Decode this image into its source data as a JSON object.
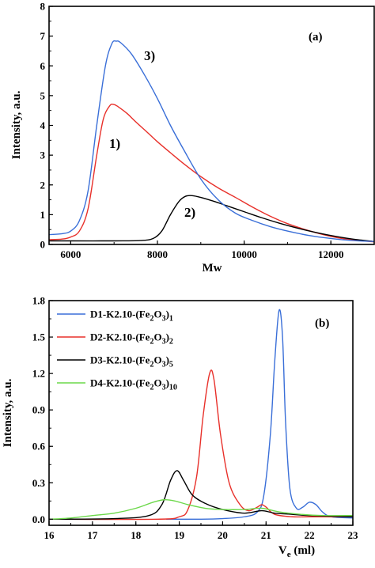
{
  "chart_data": [
    {
      "type": "line",
      "panel_label": "(a)",
      "xlabel": "Mw",
      "ylabel": "Intensity, a.u.",
      "xlim": [
        5500,
        13000
      ],
      "ylim": [
        0,
        8
      ],
      "xticks": [
        6000,
        8000,
        10000,
        12000
      ],
      "yticks": [
        0,
        1,
        2,
        3,
        4,
        5,
        6,
        7,
        8
      ],
      "grid": false,
      "series": [
        {
          "name": "1)",
          "color": "#e8302a",
          "points": [
            [
              5500,
              0.16
            ],
            [
              5800,
              0.18
            ],
            [
              6000,
              0.25
            ],
            [
              6200,
              0.45
            ],
            [
              6400,
              1.2
            ],
            [
              6600,
              3.0
            ],
            [
              6750,
              4.2
            ],
            [
              6900,
              4.66
            ],
            [
              7000,
              4.7
            ],
            [
              7100,
              4.62
            ],
            [
              7300,
              4.4
            ],
            [
              7500,
              4.12
            ],
            [
              7800,
              3.72
            ],
            [
              8000,
              3.45
            ],
            [
              8300,
              3.08
            ],
            [
              8600,
              2.72
            ],
            [
              9000,
              2.28
            ],
            [
              9400,
              1.9
            ],
            [
              9800,
              1.58
            ],
            [
              10200,
              1.25
            ],
            [
              10600,
              0.95
            ],
            [
              11000,
              0.7
            ],
            [
              11500,
              0.46
            ],
            [
              12000,
              0.27
            ],
            [
              12500,
              0.15
            ],
            [
              13000,
              0.09
            ]
          ]
        },
        {
          "name": "2)",
          "color": "#000000",
          "points": [
            [
              5500,
              0.12
            ],
            [
              6000,
              0.12
            ],
            [
              7000,
              0.12
            ],
            [
              7600,
              0.13
            ],
            [
              7900,
              0.2
            ],
            [
              8100,
              0.45
            ],
            [
              8300,
              1.0
            ],
            [
              8500,
              1.45
            ],
            [
              8650,
              1.62
            ],
            [
              8800,
              1.64
            ],
            [
              9000,
              1.58
            ],
            [
              9300,
              1.45
            ],
            [
              9600,
              1.3
            ],
            [
              10000,
              1.1
            ],
            [
              10400,
              0.9
            ],
            [
              10800,
              0.72
            ],
            [
              11200,
              0.56
            ],
            [
              11600,
              0.42
            ],
            [
              12000,
              0.3
            ],
            [
              12500,
              0.18
            ],
            [
              13000,
              0.1
            ]
          ]
        },
        {
          "name": "3)",
          "color": "#3a6fd8",
          "points": [
            [
              5500,
              0.33
            ],
            [
              5800,
              0.36
            ],
            [
              6000,
              0.45
            ],
            [
              6200,
              0.8
            ],
            [
              6400,
              1.8
            ],
            [
              6600,
              4.0
            ],
            [
              6800,
              6.0
            ],
            [
              6950,
              6.75
            ],
            [
              7050,
              6.83
            ],
            [
              7150,
              6.78
            ],
            [
              7400,
              6.4
            ],
            [
              7700,
              5.7
            ],
            [
              8000,
              4.9
            ],
            [
              8300,
              4.0
            ],
            [
              8600,
              3.2
            ],
            [
              9000,
              2.2
            ],
            [
              9400,
              1.5
            ],
            [
              9800,
              1.05
            ],
            [
              10200,
              0.8
            ],
            [
              10600,
              0.6
            ],
            [
              11000,
              0.45
            ],
            [
              11500,
              0.3
            ],
            [
              12000,
              0.2
            ],
            [
              12500,
              0.13
            ],
            [
              13000,
              0.1
            ]
          ]
        }
      ],
      "annotations": [
        "1)",
        "2)",
        "3)"
      ]
    },
    {
      "type": "line",
      "panel_label": "(b)",
      "xlabel": "V",
      "xlabel_sub": "e",
      "xlabel_unit": " (ml)",
      "ylabel": "Intensity, a.u.",
      "xlim": [
        16,
        23
      ],
      "ylim": [
        -0.05,
        1.8
      ],
      "xticks": [
        16,
        17,
        18,
        19,
        20,
        21,
        22,
        23
      ],
      "xtick_labels": [
        "16",
        "17",
        "18",
        "19",
        "20",
        "21",
        "22",
        "23"
      ],
      "yticks": [
        0.0,
        0.3,
        0.6,
        0.9,
        1.2,
        1.5,
        1.8
      ],
      "ytick_labels": [
        "0.0",
        "0.3",
        "0.6",
        "0.9",
        "1.2",
        "1.5",
        "1.8"
      ],
      "grid": false,
      "legend_position": "top-left",
      "series": [
        {
          "name_parts": [
            "D1-K2.10-(Fe",
            "2",
            "O",
            "3",
            ")",
            "1"
          ],
          "color": "#3a6fd8",
          "points": [
            [
              18.7,
              0.0
            ],
            [
              19.5,
              0.0
            ],
            [
              20.0,
              0.005
            ],
            [
              20.5,
              0.02
            ],
            [
              20.8,
              0.06
            ],
            [
              20.95,
              0.2
            ],
            [
              21.1,
              0.7
            ],
            [
              21.2,
              1.3
            ],
            [
              21.3,
              1.72
            ],
            [
              21.38,
              1.5
            ],
            [
              21.45,
              0.8
            ],
            [
              21.55,
              0.25
            ],
            [
              21.7,
              0.09
            ],
            [
              21.85,
              0.1
            ],
            [
              22.0,
              0.14
            ],
            [
              22.15,
              0.12
            ],
            [
              22.3,
              0.06
            ],
            [
              22.5,
              0.02
            ],
            [
              23.0,
              0.01
            ]
          ]
        },
        {
          "name_parts": [
            "D2-K2.10-(Fe",
            "2",
            "O",
            "3",
            ")",
            "2"
          ],
          "color": "#e8302a",
          "points": [
            [
              16.0,
              0.0
            ],
            [
              18.5,
              0.0
            ],
            [
              19.0,
              0.02
            ],
            [
              19.2,
              0.08
            ],
            [
              19.4,
              0.35
            ],
            [
              19.55,
              0.85
            ],
            [
              19.7,
              1.2
            ],
            [
              19.8,
              1.15
            ],
            [
              19.95,
              0.7
            ],
            [
              20.15,
              0.3
            ],
            [
              20.4,
              0.12
            ],
            [
              20.6,
              0.07
            ],
            [
              20.8,
              0.1
            ],
            [
              20.9,
              0.12
            ],
            [
              21.0,
              0.1
            ],
            [
              21.2,
              0.04
            ],
            [
              21.6,
              0.02
            ],
            [
              22.0,
              0.02
            ],
            [
              23.0,
              0.02
            ]
          ]
        },
        {
          "name_parts": [
            "D3-K2.10-(Fe",
            "2",
            "O",
            "3",
            ")",
            "5"
          ],
          "color": "#000000",
          "points": [
            [
              16.0,
              0.0
            ],
            [
              17.5,
              0.005
            ],
            [
              18.3,
              0.03
            ],
            [
              18.6,
              0.12
            ],
            [
              18.8,
              0.32
            ],
            [
              18.95,
              0.4
            ],
            [
              19.1,
              0.32
            ],
            [
              19.3,
              0.2
            ],
            [
              19.6,
              0.13
            ],
            [
              20.0,
              0.08
            ],
            [
              20.5,
              0.05
            ],
            [
              20.9,
              0.07
            ],
            [
              21.2,
              0.05
            ],
            [
              21.6,
              0.04
            ],
            [
              22.0,
              0.03
            ],
            [
              23.0,
              0.02
            ]
          ]
        },
        {
          "name_parts": [
            "D4-K2.10-(Fe",
            "2",
            "O",
            "3",
            ")",
            "10"
          ],
          "color": "#6cd84a",
          "points": [
            [
              16.0,
              0.0
            ],
            [
              16.5,
              0.01
            ],
            [
              17.0,
              0.03
            ],
            [
              17.5,
              0.05
            ],
            [
              18.0,
              0.09
            ],
            [
              18.4,
              0.14
            ],
            [
              18.65,
              0.16
            ],
            [
              18.9,
              0.15
            ],
            [
              19.2,
              0.12
            ],
            [
              19.6,
              0.09
            ],
            [
              20.0,
              0.08
            ],
            [
              20.5,
              0.08
            ],
            [
              20.9,
              0.09
            ],
            [
              21.3,
              0.06
            ],
            [
              21.8,
              0.04
            ],
            [
              22.3,
              0.03
            ],
            [
              23.0,
              0.03
            ]
          ]
        }
      ]
    }
  ]
}
